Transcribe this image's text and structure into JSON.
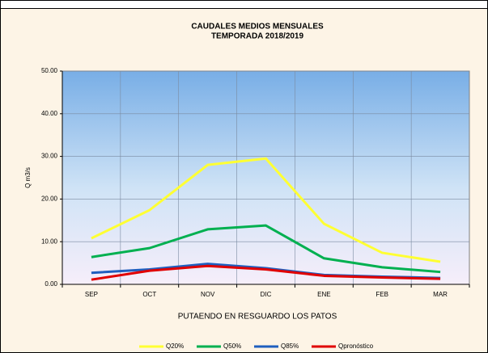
{
  "chart_data": {
    "type": "line",
    "title": "CAUDALES MEDIOS MENSUALES",
    "subtitle": "TEMPORADA 2018/2019",
    "y_label": "Q m3/s",
    "x_label": "PUTAENDO EN RESGUARDO LOS PATOS",
    "categories": [
      "SEP",
      "OCT",
      "NOV",
      "DIC",
      "ENE",
      "FEB",
      "MAR"
    ],
    "series": [
      {
        "name": "Q20%",
        "color": "#ffff33",
        "values": [
          10.8,
          17.4,
          28.0,
          29.5,
          14.2,
          7.4,
          5.3
        ]
      },
      {
        "name": "Q50%",
        "color": "#00b050",
        "values": [
          6.4,
          8.5,
          12.9,
          13.8,
          6.1,
          4.0,
          2.9
        ]
      },
      {
        "name": "Q85%",
        "color": "#1f5fbf",
        "values": [
          2.7,
          3.5,
          4.8,
          3.8,
          2.2,
          1.8,
          1.5
        ]
      },
      {
        "name": "Qpronóstico",
        "color": "#e00000",
        "values": [
          1.1,
          3.2,
          4.3,
          3.5,
          2.0,
          1.6,
          1.3
        ]
      }
    ],
    "ylim": [
      0,
      50
    ],
    "yticks": [
      {
        "value": 0,
        "label": "0.00"
      },
      {
        "value": 10,
        "label": "10.00"
      },
      {
        "value": 20,
        "label": "20.00"
      },
      {
        "value": 30,
        "label": "30.00"
      },
      {
        "value": 40,
        "label": "40.00"
      },
      {
        "value": 50,
        "label": "50.00"
      }
    ],
    "grid": true,
    "legend": "bottom"
  }
}
